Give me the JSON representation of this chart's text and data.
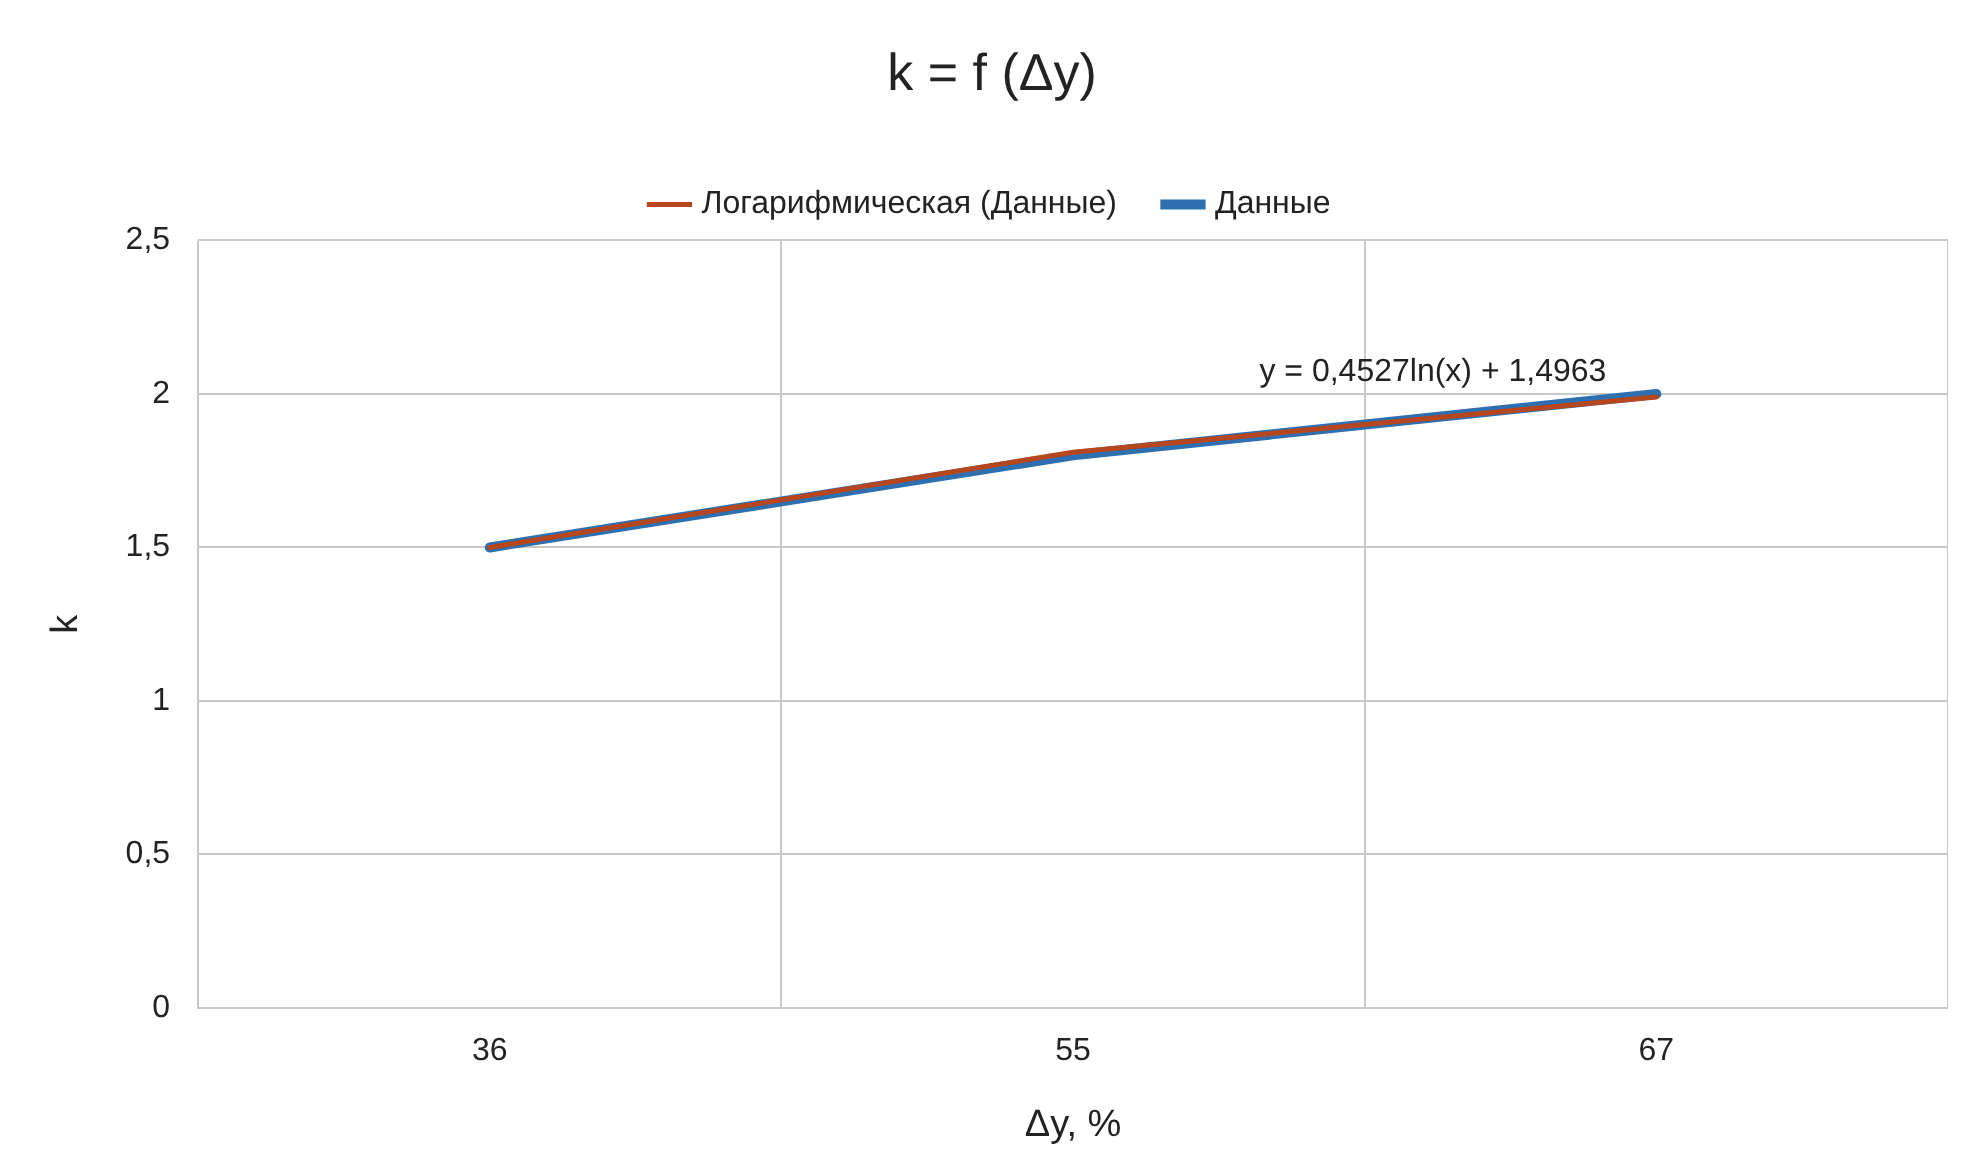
{
  "chart_data": {
    "type": "line",
    "title": "k = f (Δy)",
    "xlabel": "Δy, %",
    "ylabel": "k",
    "categories": [
      "36",
      "55",
      "67"
    ],
    "series": [
      {
        "name": "Данные",
        "color": "#2e6fb0",
        "values": [
          1.5,
          1.8,
          2.0
        ]
      },
      {
        "name": "Логарифмическая (Данные)",
        "color": "#b5461e",
        "values": [
          1.5,
          1.81,
          1.99
        ]
      }
    ],
    "ylim": [
      0,
      2.5
    ],
    "yticks": [
      0,
      {
        "value": 0.5,
        "label": "0,5"
      },
      1,
      {
        "value": 1.5,
        "label": "1,5"
      },
      2,
      {
        "value": 2.5,
        "label": "2,5"
      }
    ],
    "grid": true,
    "legend": "top",
    "marker": "none",
    "annotations": [
      {
        "text": "y = 0,4527ln(x) + 1,4963",
        "x": "67",
        "y": 2
      }
    ]
  }
}
